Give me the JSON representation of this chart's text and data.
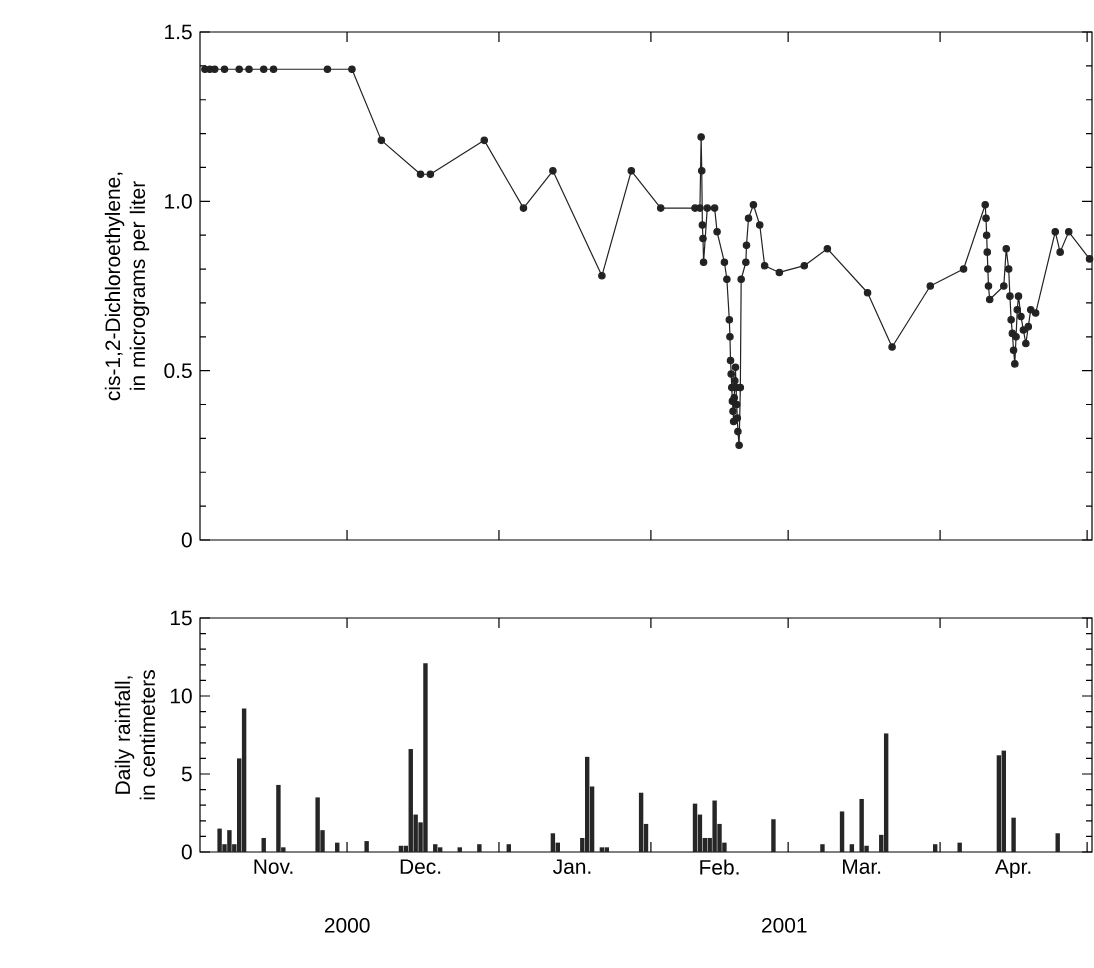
{
  "chart_data": [
    {
      "type": "line",
      "ylabel": "cis-1,2-Dichloroethylene, in micrograms per liter",
      "color": "#222222",
      "marker": "circle",
      "line_style": "solid",
      "tick_labels": "y",
      "xlim": [
        "2000-11-01",
        "2001-05-02"
      ],
      "xticks": [
        {
          "value": "2000-12-01",
          "label": null
        },
        {
          "value": "2001-01-01",
          "label": null
        },
        {
          "value": "2001-02-01",
          "label": null
        },
        {
          "value": "2001-03-01",
          "label": null
        },
        {
          "value": "2001-04-01",
          "label": null
        },
        {
          "value": "2001-05-01",
          "label": null
        }
      ],
      "ylim": [
        0,
        1.5
      ],
      "yticks": [
        0,
        {
          "value": 0.1,
          "label": null
        },
        {
          "value": 0.2,
          "label": null
        },
        {
          "value": 0.3,
          "label": null
        },
        {
          "value": 0.4,
          "label": null
        },
        0.5,
        {
          "value": 0.6,
          "label": null
        },
        {
          "value": 0.7,
          "label": null
        },
        {
          "value": 0.8,
          "label": null
        },
        {
          "value": 0.9,
          "label": null
        },
        {
          "value": 1,
          "label": "1.0"
        },
        {
          "value": 1.1,
          "label": null
        },
        {
          "value": 1.2,
          "label": null
        },
        {
          "value": 1.3,
          "label": null
        },
        {
          "value": 1.4,
          "label": null
        },
        1.5
      ],
      "x": [
        "2000-11-02",
        "2000-11-03",
        "2000-11-04",
        "2000-11-06",
        "2000-11-09",
        "2000-11-11",
        "2000-11-14",
        "2000-11-16",
        "2000-11-27",
        "2000-12-02",
        "2000-12-08",
        "2000-12-16",
        "2000-12-18",
        "2000-12-29",
        "2001-01-06",
        "2001-01-12",
        "2001-01-22",
        "2001-01-28",
        "2001-02-03",
        "2001-02-10",
        "2001-02-11",
        "2001-02-11T06:00",
        "2001-02-11T09:00",
        "2001-02-11T12:00",
        "2001-02-11T15:00",
        "2001-02-11T18:00",
        "2001-02-12T12:00",
        "2001-02-14",
        "2001-02-14T12:00",
        "2001-02-16",
        "2001-02-16T12:00",
        "2001-02-17",
        "2001-02-17T03:00",
        "2001-02-17T06:00",
        "2001-02-17T09:00",
        "2001-02-17T12:00",
        "2001-02-17T15:00",
        "2001-02-17T18:00",
        "2001-02-17T21:00",
        "2001-02-18",
        "2001-02-18T03:00",
        "2001-02-18T06:00",
        "2001-02-18T09:00",
        "2001-02-18T12:00",
        "2001-02-18T15:00",
        "2001-02-18T18:00",
        "2001-02-19",
        "2001-02-19T06:00",
        "2001-02-19T10:00",
        "2001-02-20T09:00",
        "2001-02-20T12:00",
        "2001-02-20T22:00",
        "2001-02-21T22:00",
        "2001-02-23T05:00",
        "2001-02-24T05:00",
        "2001-02-27T05:00",
        "2001-03-04T07:00",
        "2001-03-09",
        "2001-03-17T05:00",
        "2001-03-22T05:00",
        "2001-03-30",
        "2001-04-05T19:00",
        "2001-04-10T05:00",
        "2001-04-10T09:00",
        "2001-04-10T12:00",
        "2001-04-10T15:00",
        "2001-04-10T18:00",
        "2001-04-10T21:00",
        "2001-04-11T03:00",
        "2001-04-14",
        "2001-04-14T12:00",
        "2001-04-15",
        "2001-04-15T06:00",
        "2001-04-15T12:00",
        "2001-04-15T18:00",
        "2001-04-16",
        "2001-04-16T06:00",
        "2001-04-16T12:00",
        "2001-04-16T18:00",
        "2001-04-17",
        "2001-04-17T12:00",
        "2001-04-18",
        "2001-04-18T12:00",
        "2001-04-19",
        "2001-04-19T12:00",
        "2001-04-20T12:00",
        "2001-04-24T12:00",
        "2001-04-25T12:00",
        "2001-04-27T06:00",
        "2001-05-01T12:00"
      ],
      "values": [
        1.39,
        1.39,
        1.39,
        1.39,
        1.39,
        1.39,
        1.39,
        1.39,
        1.39,
        1.39,
        1.18,
        1.08,
        1.08,
        1.18,
        0.98,
        1.09,
        0.78,
        1.09,
        0.98,
        0.98,
        0.98,
        1.19,
        1.09,
        0.93,
        0.89,
        0.82,
        0.98,
        0.98,
        0.91,
        0.82,
        0.77,
        0.65,
        0.6,
        0.53,
        0.49,
        0.45,
        0.41,
        0.38,
        0.35,
        0.42,
        0.47,
        0.51,
        0.45,
        0.4,
        0.36,
        0.32,
        0.28,
        0.45,
        0.77,
        0.82,
        0.87,
        0.95,
        0.99,
        0.93,
        0.81,
        0.79,
        0.81,
        0.86,
        0.73,
        0.57,
        0.75,
        0.8,
        0.99,
        0.95,
        0.9,
        0.85,
        0.8,
        0.75,
        0.71,
        0.75,
        0.86,
        0.8,
        0.72,
        0.65,
        0.61,
        0.56,
        0.52,
        0.6,
        0.68,
        0.72,
        0.66,
        0.62,
        0.58,
        0.63,
        0.68,
        0.67,
        0.91,
        0.85,
        0.91,
        0.83
      ]
    },
    {
      "type": "bar",
      "ylabel": "Daily rainfall, in centimeters",
      "color": "#262626",
      "xlim": [
        "2000-11-01",
        "2001-05-02"
      ],
      "xticks": [
        {
          "value": "2000-11-16",
          "label": "Nov."
        },
        {
          "value": "2000-12-01",
          "label": null
        },
        {
          "value": "2000-12-16",
          "label": "Dec."
        },
        {
          "value": "2001-01-01",
          "label": null
        },
        {
          "value": "2001-01-16",
          "label": "Jan."
        },
        {
          "value": "2001-02-01",
          "label": null
        },
        {
          "value": "2001-02-15",
          "label": "Feb."
        },
        {
          "value": "2001-03-01",
          "label": null
        },
        {
          "value": "2001-03-16",
          "label": "Mar."
        },
        {
          "value": "2001-04-01",
          "label": null
        },
        {
          "value": "2001-04-16",
          "label": "Apr."
        },
        {
          "value": "2001-05-01",
          "label": null
        }
      ],
      "ylim": [
        0,
        15
      ],
      "yticks": [
        0,
        {
          "value": 1,
          "label": null
        },
        {
          "value": 2,
          "label": null
        },
        {
          "value": 3,
          "label": null
        },
        {
          "value": 4,
          "label": null
        },
        5,
        {
          "value": 6,
          "label": null
        },
        {
          "value": 7,
          "label": null
        },
        {
          "value": 8,
          "label": null
        },
        {
          "value": 9,
          "label": null
        },
        10,
        {
          "value": 11,
          "label": null
        },
        {
          "value": 12,
          "label": null
        },
        {
          "value": 13,
          "label": null
        },
        {
          "value": 14,
          "label": null
        },
        15
      ],
      "annotations": [
        "2000",
        "2001"
      ],
      "x": [
        "2000-11-05",
        "2000-11-06",
        "2000-11-07",
        "2000-11-08",
        "2000-11-09",
        "2000-11-10",
        "2000-11-14",
        "2000-11-17",
        "2000-11-18",
        "2000-11-25",
        "2000-11-26",
        "2000-11-29",
        "2000-12-05",
        "2000-12-12",
        "2000-12-13",
        "2000-12-14",
        "2000-12-15",
        "2000-12-16",
        "2000-12-17",
        "2000-12-19",
        "2000-12-20",
        "2000-12-24",
        "2000-12-28",
        "2001-01-03",
        "2001-01-12",
        "2001-01-13",
        "2001-01-18",
        "2001-01-19",
        "2001-01-20",
        "2001-01-22",
        "2001-01-23",
        "2001-01-30",
        "2001-01-31",
        "2001-02-10",
        "2001-02-11",
        "2001-02-12",
        "2001-02-13",
        "2001-02-14",
        "2001-02-15",
        "2001-02-16",
        "2001-02-26",
        "2001-03-08",
        "2001-03-12",
        "2001-03-14",
        "2001-03-16",
        "2001-03-17",
        "2001-03-20",
        "2001-03-21",
        "2001-03-31",
        "2001-04-05",
        "2001-04-13",
        "2001-04-14",
        "2001-04-16",
        "2001-04-25"
      ],
      "values": [
        1.5,
        0.5,
        1.4,
        0.5,
        6.0,
        9.2,
        0.9,
        4.3,
        0.3,
        3.5,
        1.4,
        0.6,
        0.7,
        0.4,
        0.4,
        6.6,
        2.4,
        1.9,
        12.1,
        0.5,
        0.3,
        0.3,
        0.5,
        0.5,
        1.2,
        0.6,
        0.9,
        6.1,
        4.2,
        0.3,
        0.3,
        3.8,
        1.8,
        3.1,
        2.4,
        0.9,
        0.9,
        3.3,
        1.8,
        0.6,
        2.1,
        0.5,
        2.6,
        0.5,
        3.4,
        0.4,
        1.1,
        7.6,
        0.5,
        0.6,
        6.2,
        6.5,
        2.2,
        1.2
      ]
    }
  ]
}
